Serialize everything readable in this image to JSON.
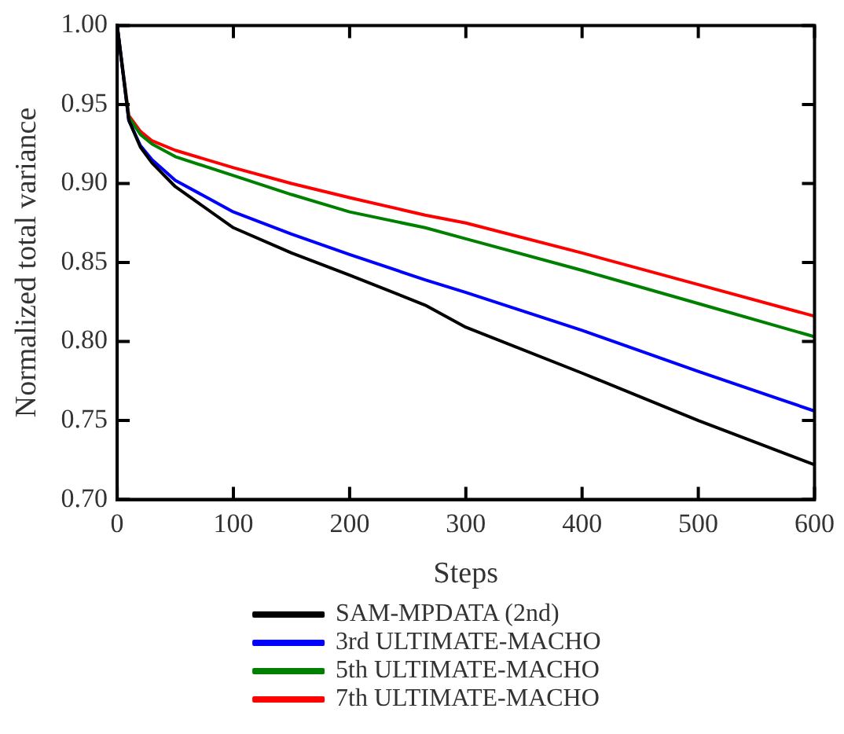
{
  "chart_data": {
    "type": "line",
    "xlabel": "Steps",
    "ylabel": "Normalized total variance",
    "x": [
      0,
      10,
      20,
      30,
      50,
      100,
      150,
      200,
      265,
      300,
      400,
      500,
      600
    ],
    "series": [
      {
        "name": "SAM-MPDATA (2nd)",
        "color": "#000000",
        "values": [
          1.0,
          0.94,
          0.923,
          0.913,
          0.898,
          0.872,
          0.856,
          0.842,
          0.823,
          0.809,
          0.78,
          0.75,
          0.722
        ]
      },
      {
        "name": "3rd ULTIMATE-MACHO",
        "color": "#0000ff",
        "values": [
          1.0,
          0.94,
          0.924,
          0.915,
          0.902,
          0.882,
          0.868,
          0.855,
          0.839,
          0.831,
          0.807,
          0.781,
          0.756
        ]
      },
      {
        "name": "5th ULTIMATE-MACHO",
        "color": "#008000",
        "values": [
          1.0,
          0.942,
          0.931,
          0.925,
          0.917,
          0.905,
          0.893,
          0.882,
          0.872,
          0.865,
          0.845,
          0.824,
          0.803
        ]
      },
      {
        "name": "7th ULTIMATE-MACHO",
        "color": "#ff0000",
        "values": [
          1.0,
          0.943,
          0.933,
          0.927,
          0.921,
          0.91,
          0.9,
          0.891,
          0.88,
          0.875,
          0.856,
          0.836,
          0.816
        ]
      }
    ],
    "xlim": [
      0,
      600
    ],
    "xticks": [
      0,
      100,
      200,
      300,
      400,
      500,
      600
    ],
    "ylim": [
      0.7,
      1.0
    ],
    "yticks": [
      {
        "value": 0.7,
        "label": "0.70"
      },
      {
        "value": 0.75,
        "label": "0.75"
      },
      {
        "value": 0.8,
        "label": "0.80"
      },
      {
        "value": 0.85,
        "label": "0.85"
      },
      {
        "value": 0.9,
        "label": "0.90"
      },
      {
        "value": 0.95,
        "label": "0.95"
      },
      {
        "value": 1.0,
        "label": "1.00"
      }
    ],
    "grid": false,
    "legend": "bottom",
    "marker": "none",
    "line_style": "solid"
  }
}
